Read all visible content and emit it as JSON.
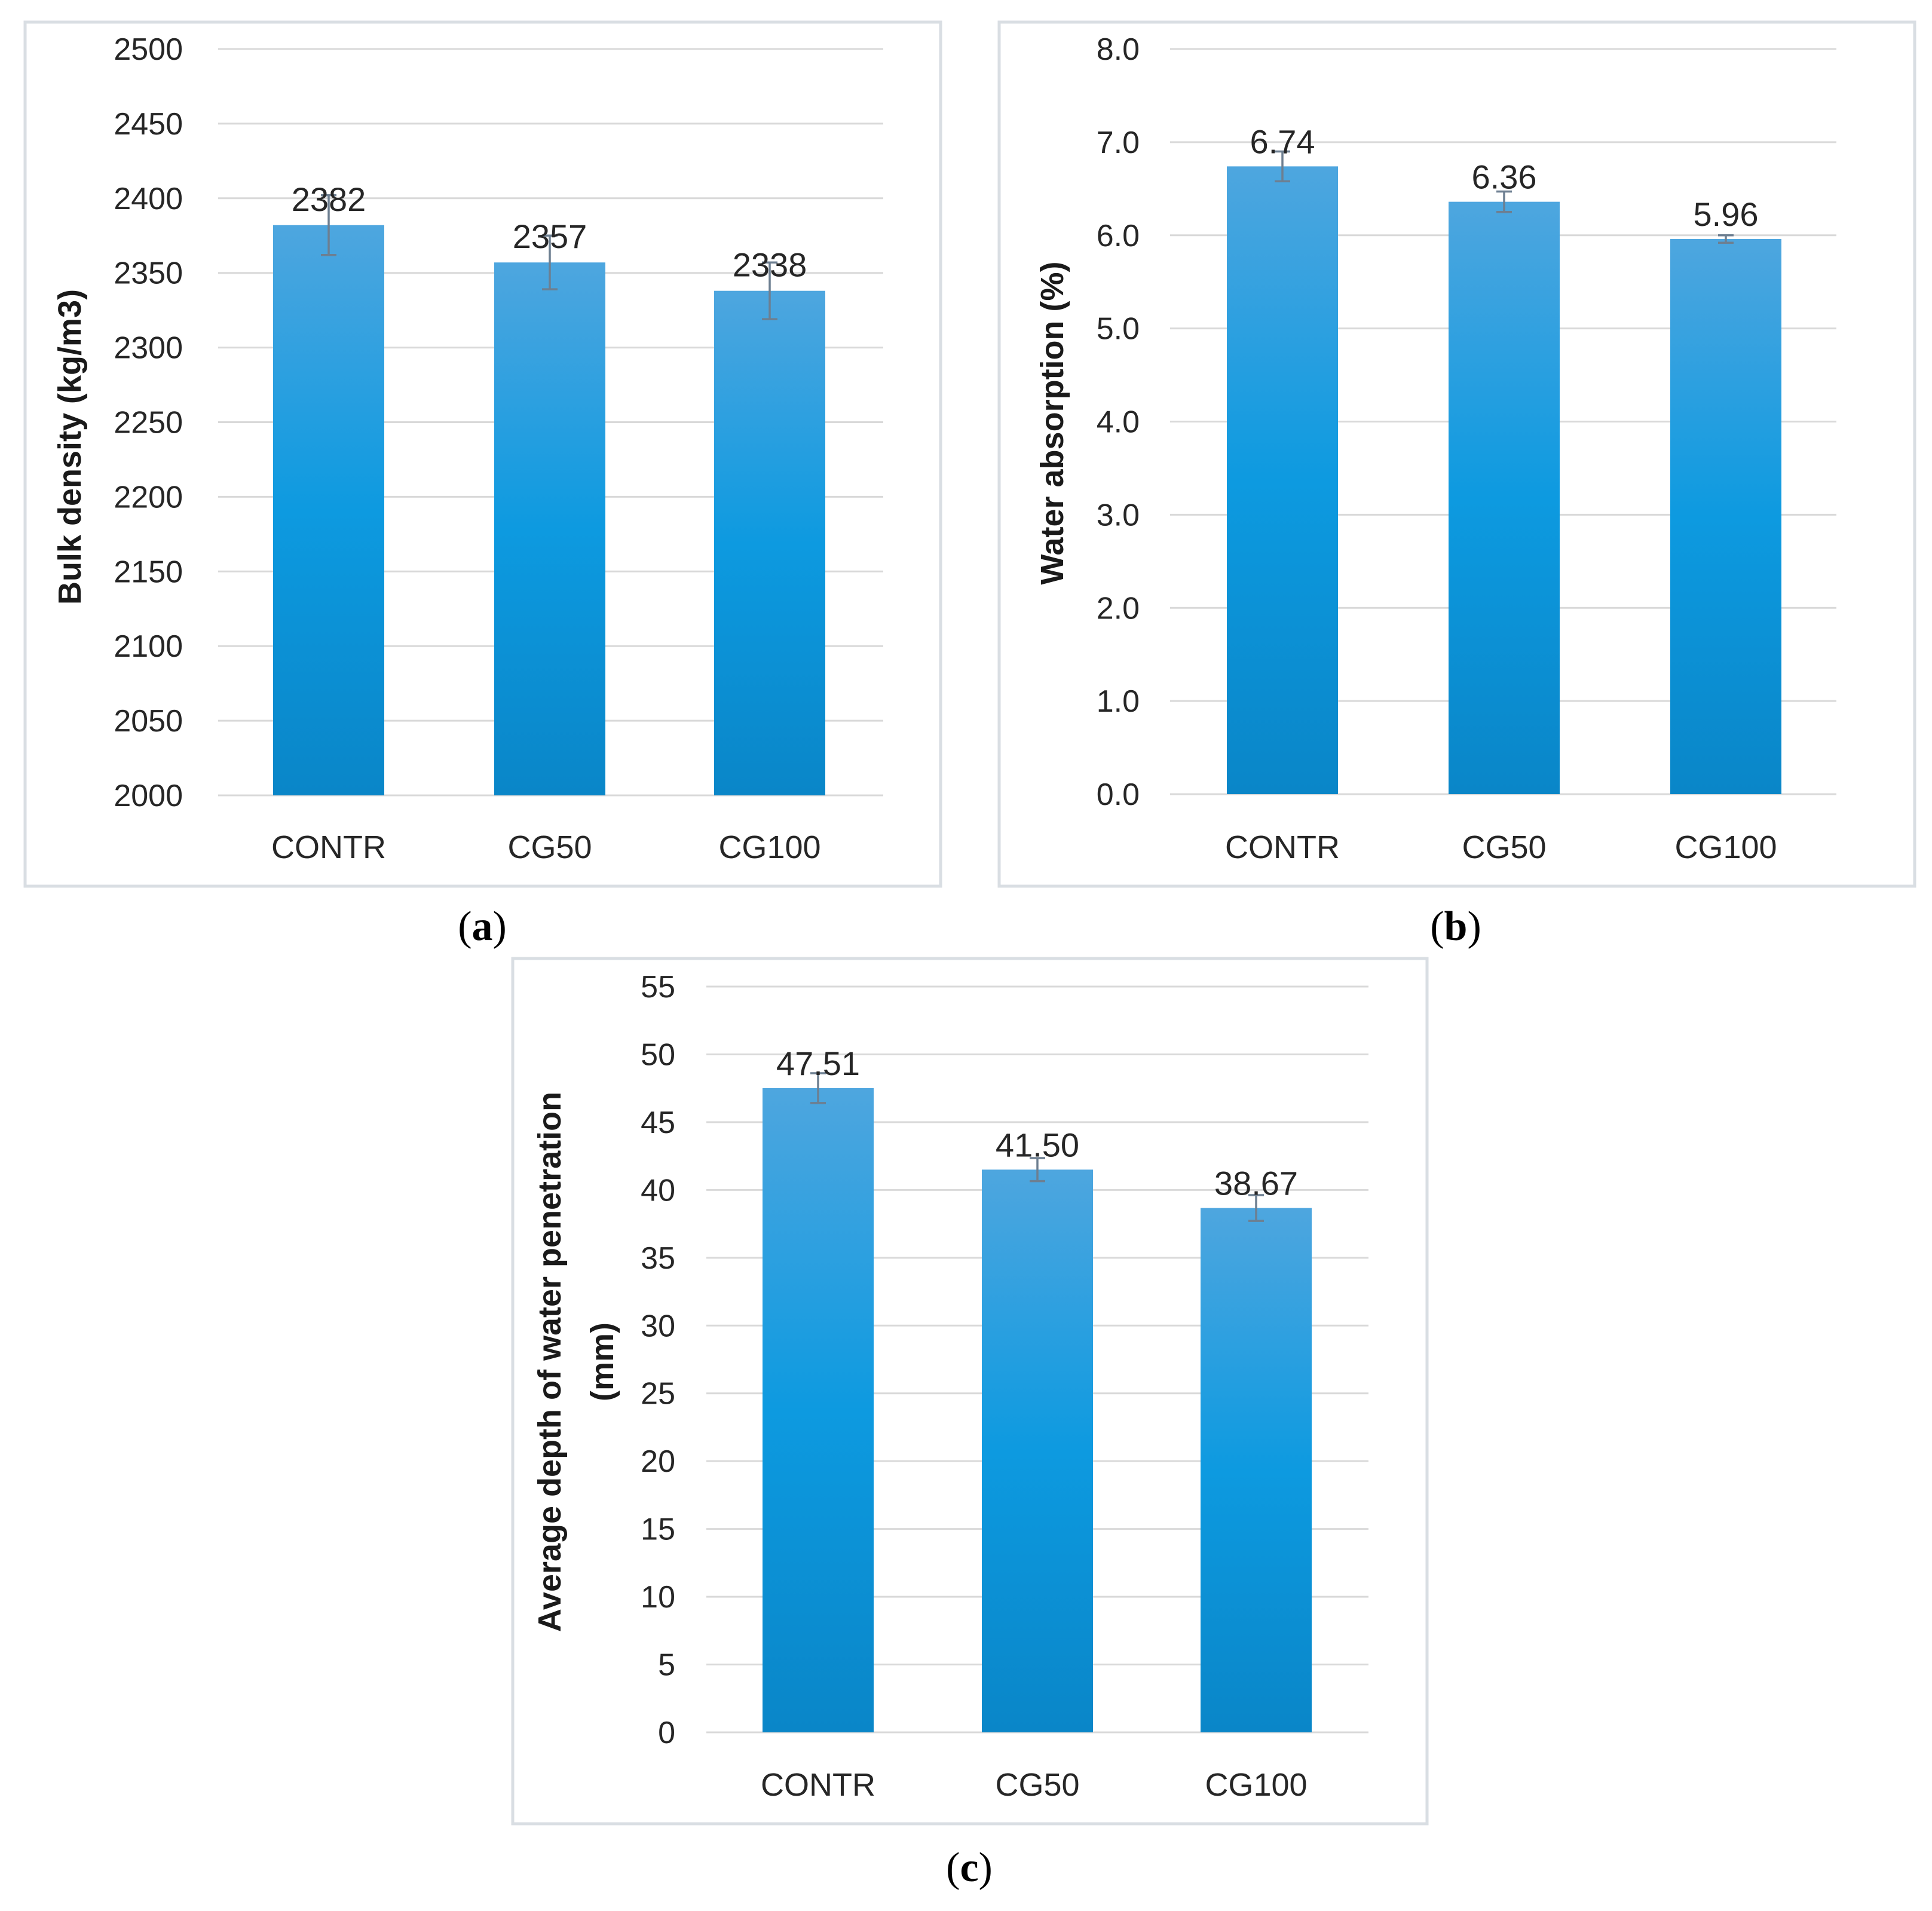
{
  "chart_data": [
    {
      "id": "a",
      "type": "bar",
      "panel_label": "a",
      "title": "",
      "xlabel": "",
      "ylabel": "Bulk density (kg/m3)",
      "categories": [
        "CONTR",
        "CG50",
        "CG100"
      ],
      "values": [
        2382,
        2357,
        2338
      ],
      "value_labels": [
        "2382",
        "2357",
        "2338"
      ],
      "errors": [
        20,
        18,
        19
      ],
      "ylim": [
        2000,
        2500
      ],
      "yticks": [
        2000,
        2050,
        2100,
        2150,
        2200,
        2250,
        2300,
        2350,
        2400,
        2450,
        2500
      ],
      "ytick_labels": [
        "2000",
        "2050",
        "2100",
        "2150",
        "2200",
        "2250",
        "2300",
        "2350",
        "2400",
        "2450",
        "2500"
      ],
      "grid": true,
      "bar_color_top": "#4ea6df",
      "bar_color_mid": "#0d9ae0",
      "bar_color_bottom": "#0a86c8"
    },
    {
      "id": "b",
      "type": "bar",
      "panel_label": "b",
      "title": "",
      "xlabel": "",
      "ylabel": "Water absorption (%)",
      "categories": [
        "CONTR",
        "CG50",
        "CG100"
      ],
      "values": [
        6.74,
        6.36,
        5.96
      ],
      "value_labels": [
        "6.74",
        "6.36",
        "5.96"
      ],
      "errors": [
        0.16,
        0.11,
        0.04
      ],
      "ylim": [
        0,
        8
      ],
      "yticks": [
        0,
        1,
        2,
        3,
        4,
        5,
        6,
        7,
        8
      ],
      "ytick_labels": [
        "0.0",
        "1.0",
        "2.0",
        "3.0",
        "4.0",
        "5.0",
        "6.0",
        "7.0",
        "8.0"
      ],
      "grid": true,
      "bar_color_top": "#4ea6df",
      "bar_color_mid": "#0d9ae0",
      "bar_color_bottom": "#0a86c8"
    },
    {
      "id": "c",
      "type": "bar",
      "panel_label": "c",
      "title": "",
      "xlabel": "",
      "ylabel": "Average depth of water penetration (mm)",
      "ylabel_lines": [
        "Average depth of water penetration",
        "(mm)"
      ],
      "categories": [
        "CONTR",
        "CG50",
        "CG100"
      ],
      "values": [
        47.51,
        41.5,
        38.67
      ],
      "value_labels": [
        "47.51",
        "41.50",
        "38.67"
      ],
      "errors": [
        1.1,
        0.85,
        0.95
      ],
      "ylim": [
        0,
        55
      ],
      "yticks": [
        0,
        5,
        10,
        15,
        20,
        25,
        30,
        35,
        40,
        45,
        50,
        55
      ],
      "ytick_labels": [
        "0",
        "5",
        "10",
        "15",
        "20",
        "25",
        "30",
        "35",
        "40",
        "45",
        "50",
        "55"
      ],
      "grid": true,
      "bar_color_top": "#4ea6df",
      "bar_color_mid": "#0d9ae0",
      "bar_color_bottom": "#0a86c8"
    }
  ]
}
